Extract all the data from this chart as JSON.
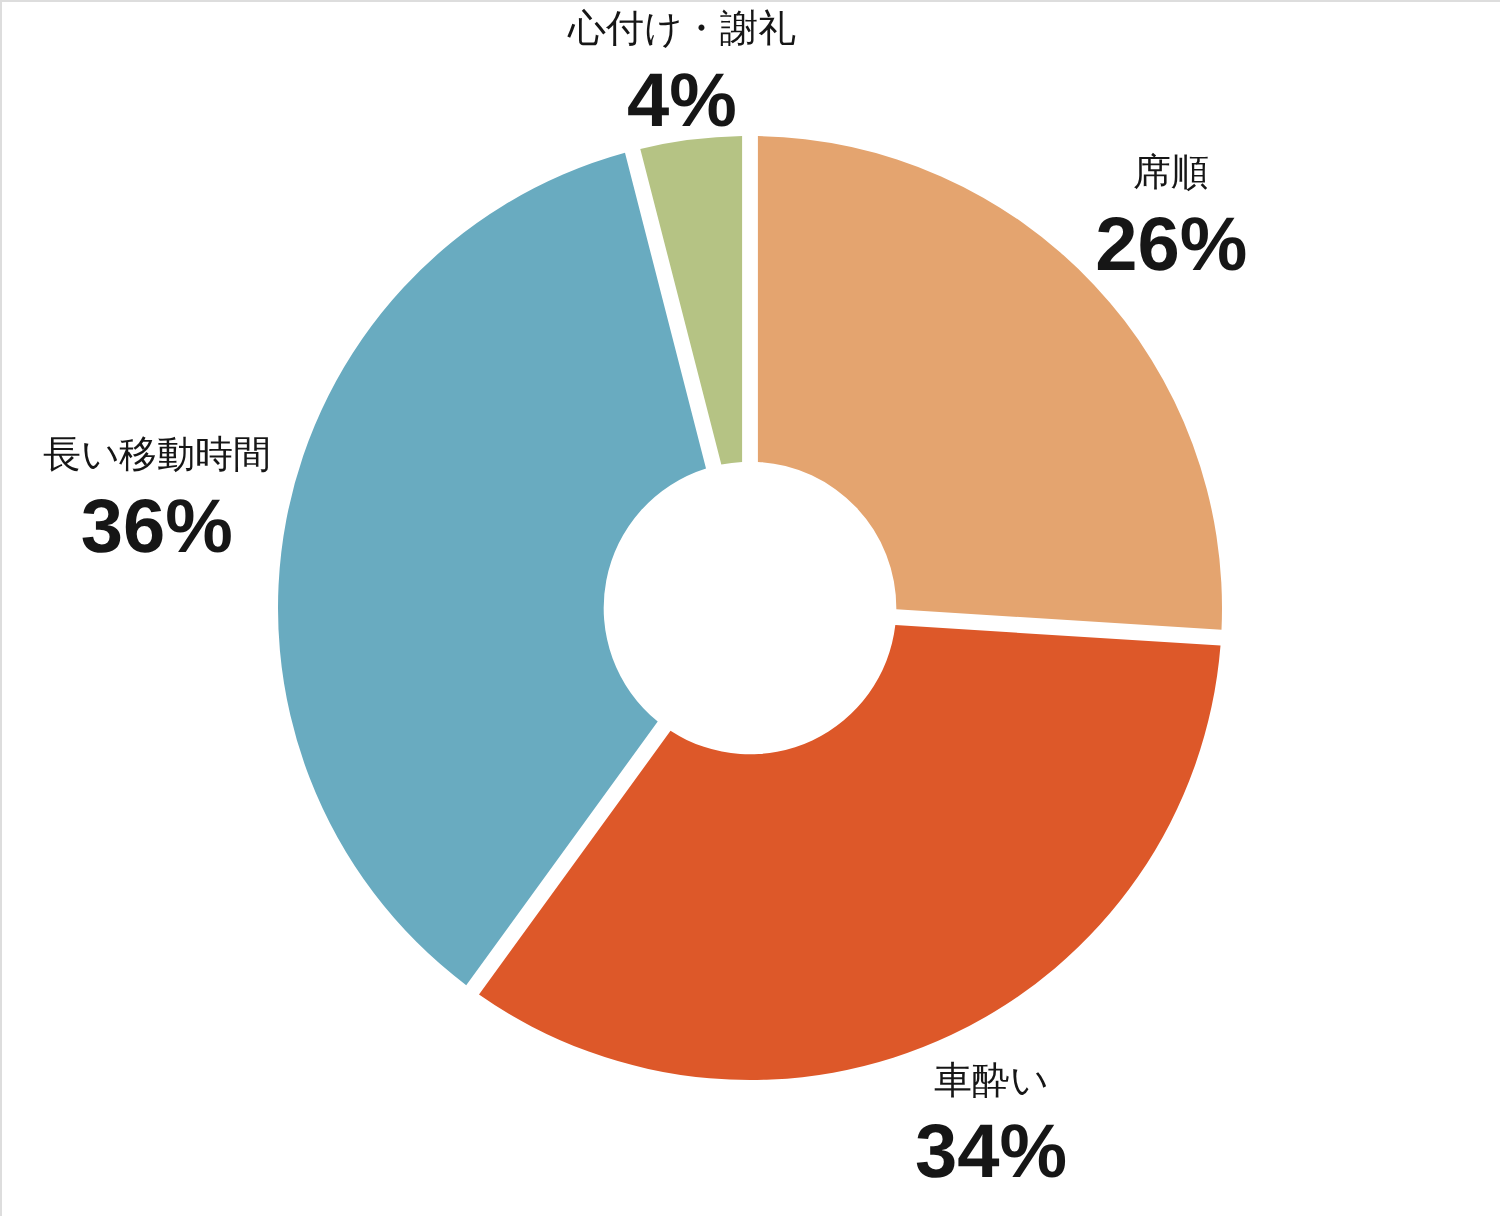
{
  "chart_data": {
    "type": "donut",
    "categories": [
      "席順",
      "車酔い",
      "長い移動時間",
      "心付け・謝礼"
    ],
    "values": [
      26,
      34,
      36,
      4
    ],
    "colors": [
      "#e4a46f",
      "#dd5829",
      "#69abc0",
      "#b5c384"
    ],
    "value_labels": [
      "26%",
      "34%",
      "36%",
      "4%"
    ]
  }
}
